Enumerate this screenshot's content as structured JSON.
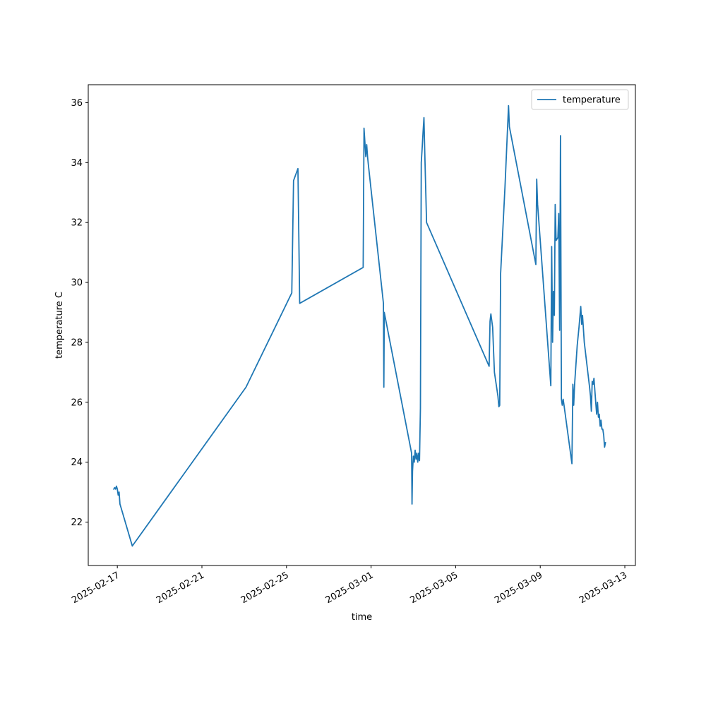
{
  "chart_data": {
    "type": "line",
    "xlabel": "time",
    "ylabel": "temperature C",
    "x_ticks": [
      "2025-02-17",
      "2025-02-21",
      "2025-02-25",
      "2025-03-01",
      "2025-03-05",
      "2025-03-09",
      "2025-03-13"
    ],
    "y_ticks": [
      22,
      24,
      26,
      28,
      30,
      32,
      34,
      36
    ],
    "xlim": [
      "2025-02-15T15:00",
      "2025-03-13T12:00"
    ],
    "ylim": [
      20.55,
      36.6
    ],
    "grid": false,
    "legend_position": "top-right",
    "line_color": "#1f77b4",
    "series": [
      {
        "name": "temperature",
        "points": [
          [
            "2025-02-16T20:00",
            23.1
          ],
          [
            "2025-02-16T21:00",
            23.15
          ],
          [
            "2025-02-16T22:00",
            23.1
          ],
          [
            "2025-02-16T23:00",
            23.2
          ],
          [
            "2025-02-17T00:00",
            23.1
          ],
          [
            "2025-02-17T01:00",
            22.9
          ],
          [
            "2025-02-17T02:00",
            23.0
          ],
          [
            "2025-02-17T03:00",
            22.6
          ],
          [
            "2025-02-17T04:00",
            22.5
          ],
          [
            "2025-02-17T17:00",
            21.2
          ],
          [
            "2025-02-23T02:00",
            26.5
          ],
          [
            "2025-02-25T06:00",
            29.65
          ],
          [
            "2025-02-25T08:00",
            33.4
          ],
          [
            "2025-02-25T13:00",
            33.8
          ],
          [
            "2025-02-25T15:00",
            29.3
          ],
          [
            "2025-02-28T15:00",
            30.5
          ],
          [
            "2025-02-28T16:00",
            35.15
          ],
          [
            "2025-02-28T18:00",
            34.2
          ],
          [
            "2025-02-28T19:00",
            34.6
          ],
          [
            "2025-02-28T20:00",
            34.2
          ],
          [
            "2025-02-28T21:00",
            33.9
          ],
          [
            "2025-03-01T14:00",
            29.3
          ],
          [
            "2025-03-01T14:30",
            26.5
          ],
          [
            "2025-03-01T15:00",
            29.0
          ],
          [
            "2025-03-02T22:00",
            24.3
          ],
          [
            "2025-03-02T22:30",
            22.6
          ],
          [
            "2025-03-02T23:00",
            23.7
          ],
          [
            "2025-03-03T00:00",
            24.2
          ],
          [
            "2025-03-03T01:00",
            24.0
          ],
          [
            "2025-03-03T02:00",
            24.4
          ],
          [
            "2025-03-03T03:00",
            24.1
          ],
          [
            "2025-03-03T04:00",
            24.3
          ],
          [
            "2025-03-03T05:00",
            24.0
          ],
          [
            "2025-03-03T06:00",
            24.3
          ],
          [
            "2025-03-03T07:00",
            24.05
          ],
          [
            "2025-03-03T08:00",
            25.8
          ],
          [
            "2025-03-03T09:00",
            34.0
          ],
          [
            "2025-03-03T10:00",
            34.5
          ],
          [
            "2025-03-03T11:00",
            35.0
          ],
          [
            "2025-03-03T12:00",
            35.5
          ],
          [
            "2025-03-03T13:00",
            34.3
          ],
          [
            "2025-03-03T15:00",
            32.0
          ],
          [
            "2025-03-06T14:00",
            27.2
          ],
          [
            "2025-03-06T15:00",
            28.7
          ],
          [
            "2025-03-06T16:00",
            28.95
          ],
          [
            "2025-03-06T18:00",
            28.5
          ],
          [
            "2025-03-06T20:00",
            27.0
          ],
          [
            "2025-03-07T00:00",
            26.2
          ],
          [
            "2025-03-07T01:00",
            25.85
          ],
          [
            "2025-03-07T02:00",
            25.9
          ],
          [
            "2025-03-07T03:00",
            30.3
          ],
          [
            "2025-03-07T08:00",
            33.2
          ],
          [
            "2025-03-07T12:00",
            35.9
          ],
          [
            "2025-03-07T13:00",
            35.2
          ],
          [
            "2025-03-08T19:00",
            30.6
          ],
          [
            "2025-03-08T20:00",
            33.45
          ],
          [
            "2025-03-08T21:00",
            32.6
          ],
          [
            "2025-03-09T12:00",
            26.55
          ],
          [
            "2025-03-09T13:00",
            31.2
          ],
          [
            "2025-03-09T14:00",
            28.0
          ],
          [
            "2025-03-09T15:00",
            29.7
          ],
          [
            "2025-03-09T16:00",
            28.9
          ],
          [
            "2025-03-09T17:00",
            32.6
          ],
          [
            "2025-03-09T18:00",
            31.4
          ],
          [
            "2025-03-09T20:00",
            31.5
          ],
          [
            "2025-03-09T21:00",
            32.3
          ],
          [
            "2025-03-09T22:00",
            28.4
          ],
          [
            "2025-03-09T23:00",
            34.9
          ],
          [
            "2025-03-10T00:00",
            26.1
          ],
          [
            "2025-03-10T01:00",
            25.9
          ],
          [
            "2025-03-10T02:00",
            26.1
          ],
          [
            "2025-03-10T03:00",
            25.9
          ],
          [
            "2025-03-10T12:00",
            23.95
          ],
          [
            "2025-03-10T13:00",
            26.6
          ],
          [
            "2025-03-10T14:00",
            25.9
          ],
          [
            "2025-03-10T15:00",
            26.6
          ],
          [
            "2025-03-10T18:00",
            27.9
          ],
          [
            "2025-03-10T20:00",
            28.5
          ],
          [
            "2025-03-10T22:00",
            29.2
          ],
          [
            "2025-03-10T23:00",
            28.6
          ],
          [
            "2025-03-11T00:00",
            28.9
          ],
          [
            "2025-03-11T02:00",
            28.0
          ],
          [
            "2025-03-11T04:00",
            27.5
          ],
          [
            "2025-03-11T06:00",
            27.0
          ],
          [
            "2025-03-11T08:00",
            26.5
          ],
          [
            "2025-03-11T09:00",
            26.2
          ],
          [
            "2025-03-11T10:00",
            25.7
          ],
          [
            "2025-03-11T11:00",
            26.7
          ],
          [
            "2025-03-11T12:00",
            26.6
          ],
          [
            "2025-03-11T13:00",
            26.8
          ],
          [
            "2025-03-11T15:00",
            26.0
          ],
          [
            "2025-03-11T16:00",
            25.6
          ],
          [
            "2025-03-11T17:00",
            26.0
          ],
          [
            "2025-03-11T18:00",
            25.5
          ],
          [
            "2025-03-11T19:00",
            25.6
          ],
          [
            "2025-03-11T20:00",
            25.2
          ],
          [
            "2025-03-11T21:00",
            25.4
          ],
          [
            "2025-03-11T22:00",
            25.1
          ],
          [
            "2025-03-11T23:00",
            25.1
          ],
          [
            "2025-03-12T00:00",
            24.9
          ],
          [
            "2025-03-12T01:00",
            24.5
          ],
          [
            "2025-03-12T02:00",
            24.65
          ]
        ]
      }
    ]
  }
}
